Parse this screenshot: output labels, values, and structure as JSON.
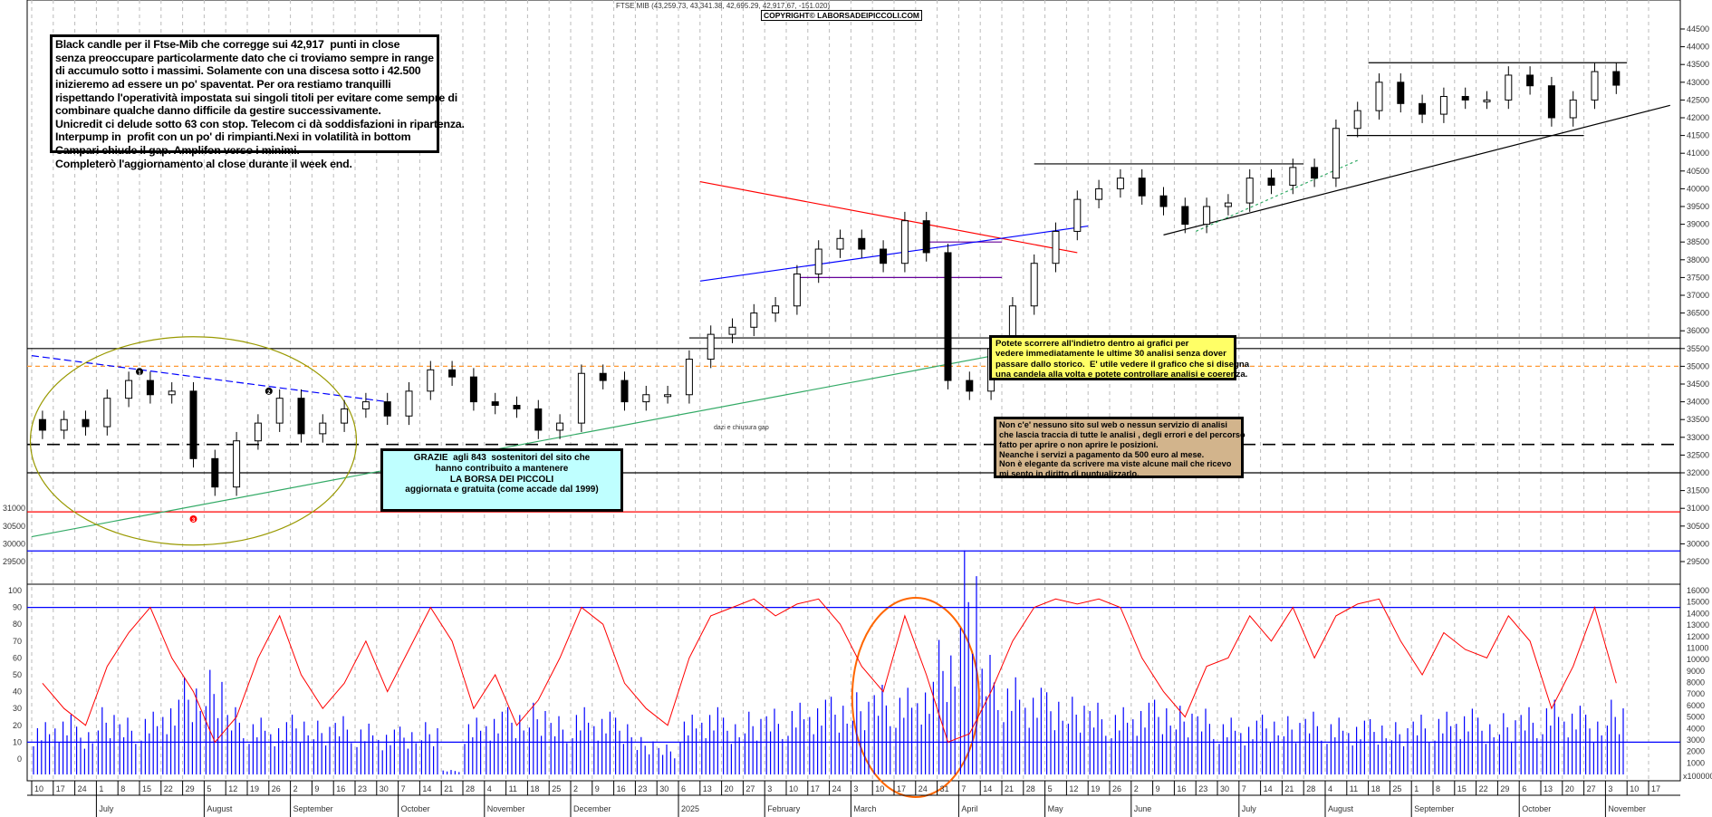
{
  "header": {
    "title": "FTSE MIB (43,259.73, 43,341.38, 42,695.29, 42,917.67, -151.020)",
    "copyright": "COPYRIGHT© LABORSADEIPICCOLI.COM"
  },
  "notes": {
    "main": "Black candle per il Ftse-Mib che corregge sui 42,917  punti in close\nsenza preoccupare particolarmente dato che ci troviamo sempre in range\ndi accumulo sotto i massimi. Solamente con una discesa sotto i 42.500\ninizieremo ad essere un po' spaventat. Per ora restiamo tranquilli\nrispettando l'operatività impostata sui singoli titoli per evitare come sempre di\ncombinare qualche danno difficile da gestire successivamente.\nUnicredit ci delude sotto 63 con stop. Telecom ci dà soddisfazioni in ripartenza.\nInterpump in  profit con un po' di rimpianti.Nexi in volatilità in bottom\nCampari chiude il gap. Amplifon verso i minimi.\nCompleterò l'aggiornamento al close durante il week end.",
    "thanks": "GRAZIE  agli 843  sostenitori del sito che\nhanno contribuito a mantenere\nLA BORSA DEI PICCOLI\naggiornata e gratuita (come accade dal 1999)",
    "scroll": "Potete scorrere all'indietro dentro ai grafici per\nvedere immediatamente le ultime 30 analisi senza dover\npassare dallo storico.  E' utile vedere il grafico che si disegna\nuna candela alla volta e potete controllare analisi e coerenza.",
    "honest": "Non c'e' nessuno sito sul web o nessun servizio di analisi\nche lascia traccia di tutte le analisi , degli errori e del percorso\nfatto per aprire o non aprire le posizioni.\nNeanche i servizi a pagamento da 500 euro al mese.\nNon è elegante da scrivere ma viste alcune mail che ricevo\nmi sento in diritto di puntualizzarlo.",
    "gap": "dazi e chiusura gap"
  },
  "chart_data": {
    "type": "candlestick",
    "title": "FTSE MIB",
    "price_ylim": [
      29500,
      44500
    ],
    "price_ticks": [
      29500,
      30000,
      30500,
      31000,
      31500,
      32000,
      32500,
      33000,
      33500,
      34000,
      34500,
      35000,
      35500,
      36000,
      36500,
      37000,
      37500,
      38000,
      38500,
      39000,
      39500,
      40000,
      40500,
      41000,
      41500,
      42000,
      42500,
      43000,
      43500,
      44000,
      44500
    ],
    "weekly_close": [
      33200,
      33500,
      33300,
      34100,
      34600,
      34200,
      34300,
      32400,
      31600,
      32900,
      33400,
      34100,
      33100,
      33400,
      33800,
      34000,
      33600,
      34300,
      34900,
      34700,
      34000,
      33900,
      33800,
      33200,
      33400,
      34800,
      34600,
      34000,
      34200,
      34200,
      35200,
      35900,
      36100,
      36500,
      36700,
      37600,
      38300,
      38600,
      38300,
      37900,
      39100,
      38200,
      34600,
      34300,
      35500,
      36700,
      37900,
      38800,
      39700,
      40000,
      40300,
      39800,
      39500,
      39000,
      39500,
      39600,
      40300,
      40100,
      40600,
      40300,
      41700,
      42200,
      43000,
      42400,
      42100,
      42600,
      42500,
      42500,
      43200,
      42900,
      42000,
      42500,
      43300,
      42917
    ],
    "horizontal_levels": [
      {
        "value": 35500,
        "color": "#000000"
      },
      {
        "value": 35800,
        "color": "#000000"
      },
      {
        "value": 35000,
        "color": "#ff9933",
        "dashed": true
      },
      {
        "value": 32800,
        "color": "#000000",
        "dashed": true
      },
      {
        "value": 32000,
        "color": "#000000"
      },
      {
        "value": 30900,
        "color": "#ff0000"
      },
      {
        "value": 29800,
        "color": "#0000ff"
      },
      {
        "value": 43550,
        "color": "#000000"
      },
      {
        "value": 41500,
        "color": "#000000"
      },
      {
        "value": 40700,
        "color": "#000000"
      },
      {
        "value": 38500,
        "color": "#660099"
      },
      {
        "value": 37500,
        "color": "#660099"
      }
    ],
    "oscillator_ticks": [
      0,
      10,
      20,
      30,
      40,
      50,
      60,
      70,
      80,
      90,
      100
    ],
    "oscillator_levels": [
      10,
      90
    ],
    "oscillator": [
      45,
      30,
      20,
      55,
      75,
      90,
      60,
      40,
      10,
      25,
      60,
      85,
      50,
      30,
      45,
      70,
      40,
      65,
      90,
      70,
      30,
      50,
      20,
      35,
      60,
      90,
      80,
      45,
      30,
      20,
      60,
      85,
      90,
      95,
      85,
      92,
      95,
      80,
      55,
      40,
      85,
      50,
      10,
      15,
      40,
      70,
      90,
      95,
      92,
      95,
      90,
      60,
      40,
      25,
      55,
      60,
      85,
      70,
      90,
      60,
      85,
      92,
      95,
      70,
      50,
      75,
      65,
      60,
      85,
      70,
      30,
      55,
      90,
      45
    ],
    "volume_ticks": [
      1000,
      2000,
      3000,
      4000,
      5000,
      6000,
      7000,
      8000,
      9000,
      10000,
      11000,
      12000,
      13000,
      14000,
      15000,
      16000
    ],
    "volume_unit": "x100000",
    "volume": [
      3500,
      4000,
      3200,
      4500,
      3800,
      4200,
      5000,
      6500,
      7000,
      4500,
      3800,
      3500,
      4000,
      3600,
      3900,
      3400,
      3000,
      3200,
      3500,
      300,
      3800,
      4200,
      4500,
      4800,
      3900,
      4500,
      4200,
      3800,
      2500,
      2000,
      4000,
      4500,
      3800,
      4200,
      4400,
      4800,
      5000,
      5200,
      5500,
      6000,
      5800,
      6200,
      9000,
      15000,
      8000,
      6500,
      5800,
      5500,
      5200,
      4800,
      4500,
      4800,
      5000,
      4600,
      4400,
      3800,
      3600,
      4000,
      3900,
      4200,
      3800,
      3600,
      3700,
      3500,
      4000,
      4200,
      4400,
      3800,
      4100,
      4500,
      5000,
      4600,
      4000,
      5000
    ],
    "x_tick_labels": [
      "10",
      "17",
      "24",
      "1",
      "8",
      "15",
      "22",
      "29",
      "5",
      "12",
      "19",
      "26",
      "2",
      "9",
      "16",
      "23",
      "30",
      "7",
      "14",
      "21",
      "28",
      "4",
      "11",
      "18",
      "25",
      "2",
      "9",
      "16",
      "23",
      "30",
      "6",
      "13",
      "20",
      "27",
      "3",
      "10",
      "17",
      "24",
      "3",
      "10",
      "17",
      "24",
      "31",
      "7",
      "14",
      "21",
      "28",
      "5",
      "12",
      "19",
      "26",
      "2",
      "9",
      "16",
      "23",
      "30",
      "7",
      "14",
      "21",
      "28",
      "4",
      "11",
      "18",
      "25",
      "1",
      "8",
      "15",
      "22",
      "29",
      "6",
      "13",
      "20",
      "27",
      "3",
      "10",
      "17"
    ],
    "month_labels": [
      "July",
      "August",
      "September",
      "October",
      "November",
      "December",
      "2025",
      "February",
      "March",
      "April",
      "May",
      "June",
      "July",
      "August",
      "September",
      "October",
      "November"
    ],
    "markers": [
      "1",
      "2",
      "3"
    ],
    "colors": {
      "candle": "#000000",
      "grid": "#bbbbbb",
      "oscillator": "#ff0000",
      "volume": "#0000ff",
      "ellipse": "#999900",
      "circle": "#ff6600",
      "uptrend": "#000000",
      "green_trend": "#33aa66"
    }
  }
}
